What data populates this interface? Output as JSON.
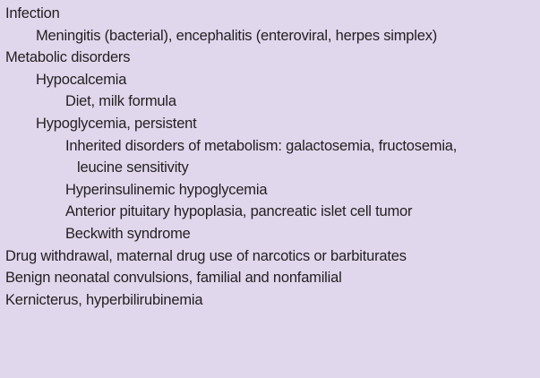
{
  "items": [
    "Infection",
    "Meningitis (bacterial), encephalitis (enteroviral, herpes simplex)",
    "Metabolic disorders",
    "Hypocalcemia",
    "Diet, milk formula",
    "Hypoglycemia, persistent",
    "Inherited disorders of metabolism: galactosemia, fructosemia,",
    "leucine sensitivity",
    "Hyperinsulinemic hypoglycemia",
    "Anterior pituitary hypoplasia, pancreatic islet cell tumor",
    "Beckwith syndrome",
    "Drug withdrawal, maternal drug use of narcotics or barbiturates",
    "Benign neonatal convulsions, familial and nonfamilial",
    "Kernicterus, hyperbilirubinemia"
  ]
}
